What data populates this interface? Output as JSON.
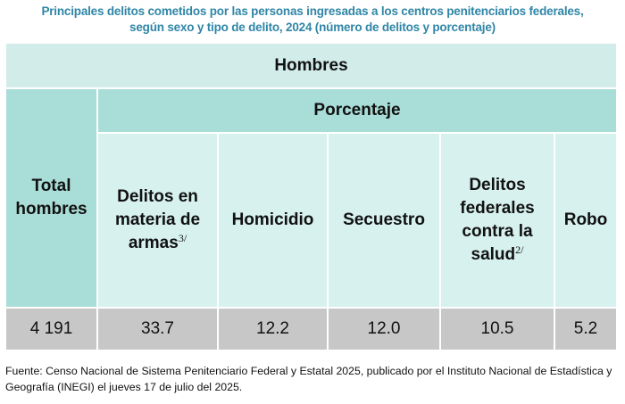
{
  "title": [
    "Principales delitos cometidos por las personas ingresadas a los centros penitenciarios federales,",
    "según sexo y tipo de delito, 2024 (número de delitos y porcentaje)"
  ],
  "table": {
    "group_header": "Hombres",
    "total_header": "Total hombres",
    "subgroup_header": "Porcentaje",
    "columns": [
      {
        "label": "Delitos en materia de armas",
        "note": "3/"
      },
      {
        "label": "Homicidio"
      },
      {
        "label": "Secuestro"
      },
      {
        "label": "Delitos federales contra la salud",
        "note": "2/"
      },
      {
        "label": "Robo"
      }
    ],
    "row": [
      "4 191",
      "33.7",
      "12.2",
      "12.0",
      "10.5",
      "5.2"
    ]
  },
  "footer": "Fuente: Censo Nacional de Sistema Penitenciario Federal y Estatal 2025, publicado por el Instituto Nacional de Estadística y Geografía (INEGI) el jueves 17 de julio del 2025."
}
